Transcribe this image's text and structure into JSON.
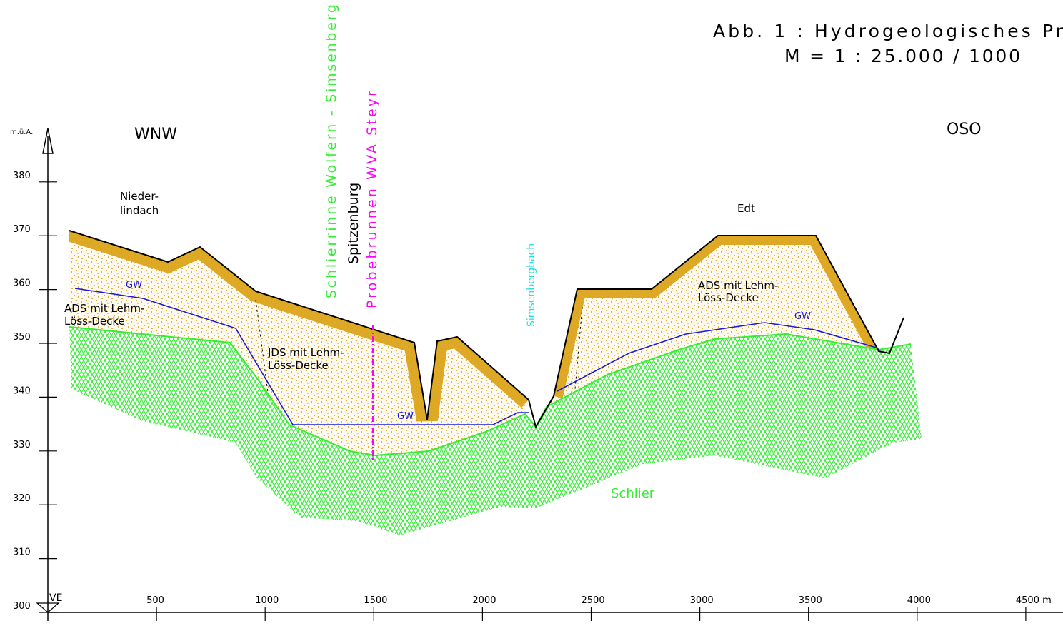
{
  "header": {
    "title": "Abb. 1 :  Hydrogeologisches Pr",
    "scale": "M = 1 : 25.000 / 1000"
  },
  "directions": {
    "left": "WNW",
    "right": "OSO"
  },
  "y_axis": {
    "label": "m.ü.A.",
    "ticks": [
      300,
      310,
      320,
      330,
      340,
      350,
      360,
      370,
      380
    ]
  },
  "x_axis": {
    "origin_label": "VE",
    "ticks": [
      500,
      1000,
      1500,
      2000,
      2500,
      3000,
      3500,
      4000,
      {
        "value": 4500,
        "label": "4500 m"
      }
    ]
  },
  "places": {
    "niederlindach": [
      "Nieder-",
      "lindach"
    ],
    "edt": "Edt"
  },
  "vertical_labels": {
    "schlierrinne": "Schlierrinne Wolfern - Simsenberg",
    "spitzenburg": "Spitzenburg",
    "probebrunnen": "Probebrunnen WVA Steyr",
    "simsenbergbach": "Simsenbergbach"
  },
  "units": {
    "ads_left": [
      "ADS mit Lehm-",
      "Löss-Decke"
    ],
    "jds": [
      "JDS mit Lehm-",
      "Löss-Decke"
    ],
    "ads_right": [
      "ADS mit Lehm-",
      "Löss-Decke"
    ],
    "schlier": "Schlier"
  },
  "groundwater": [
    "GW",
    "GW",
    "GW"
  ]
}
